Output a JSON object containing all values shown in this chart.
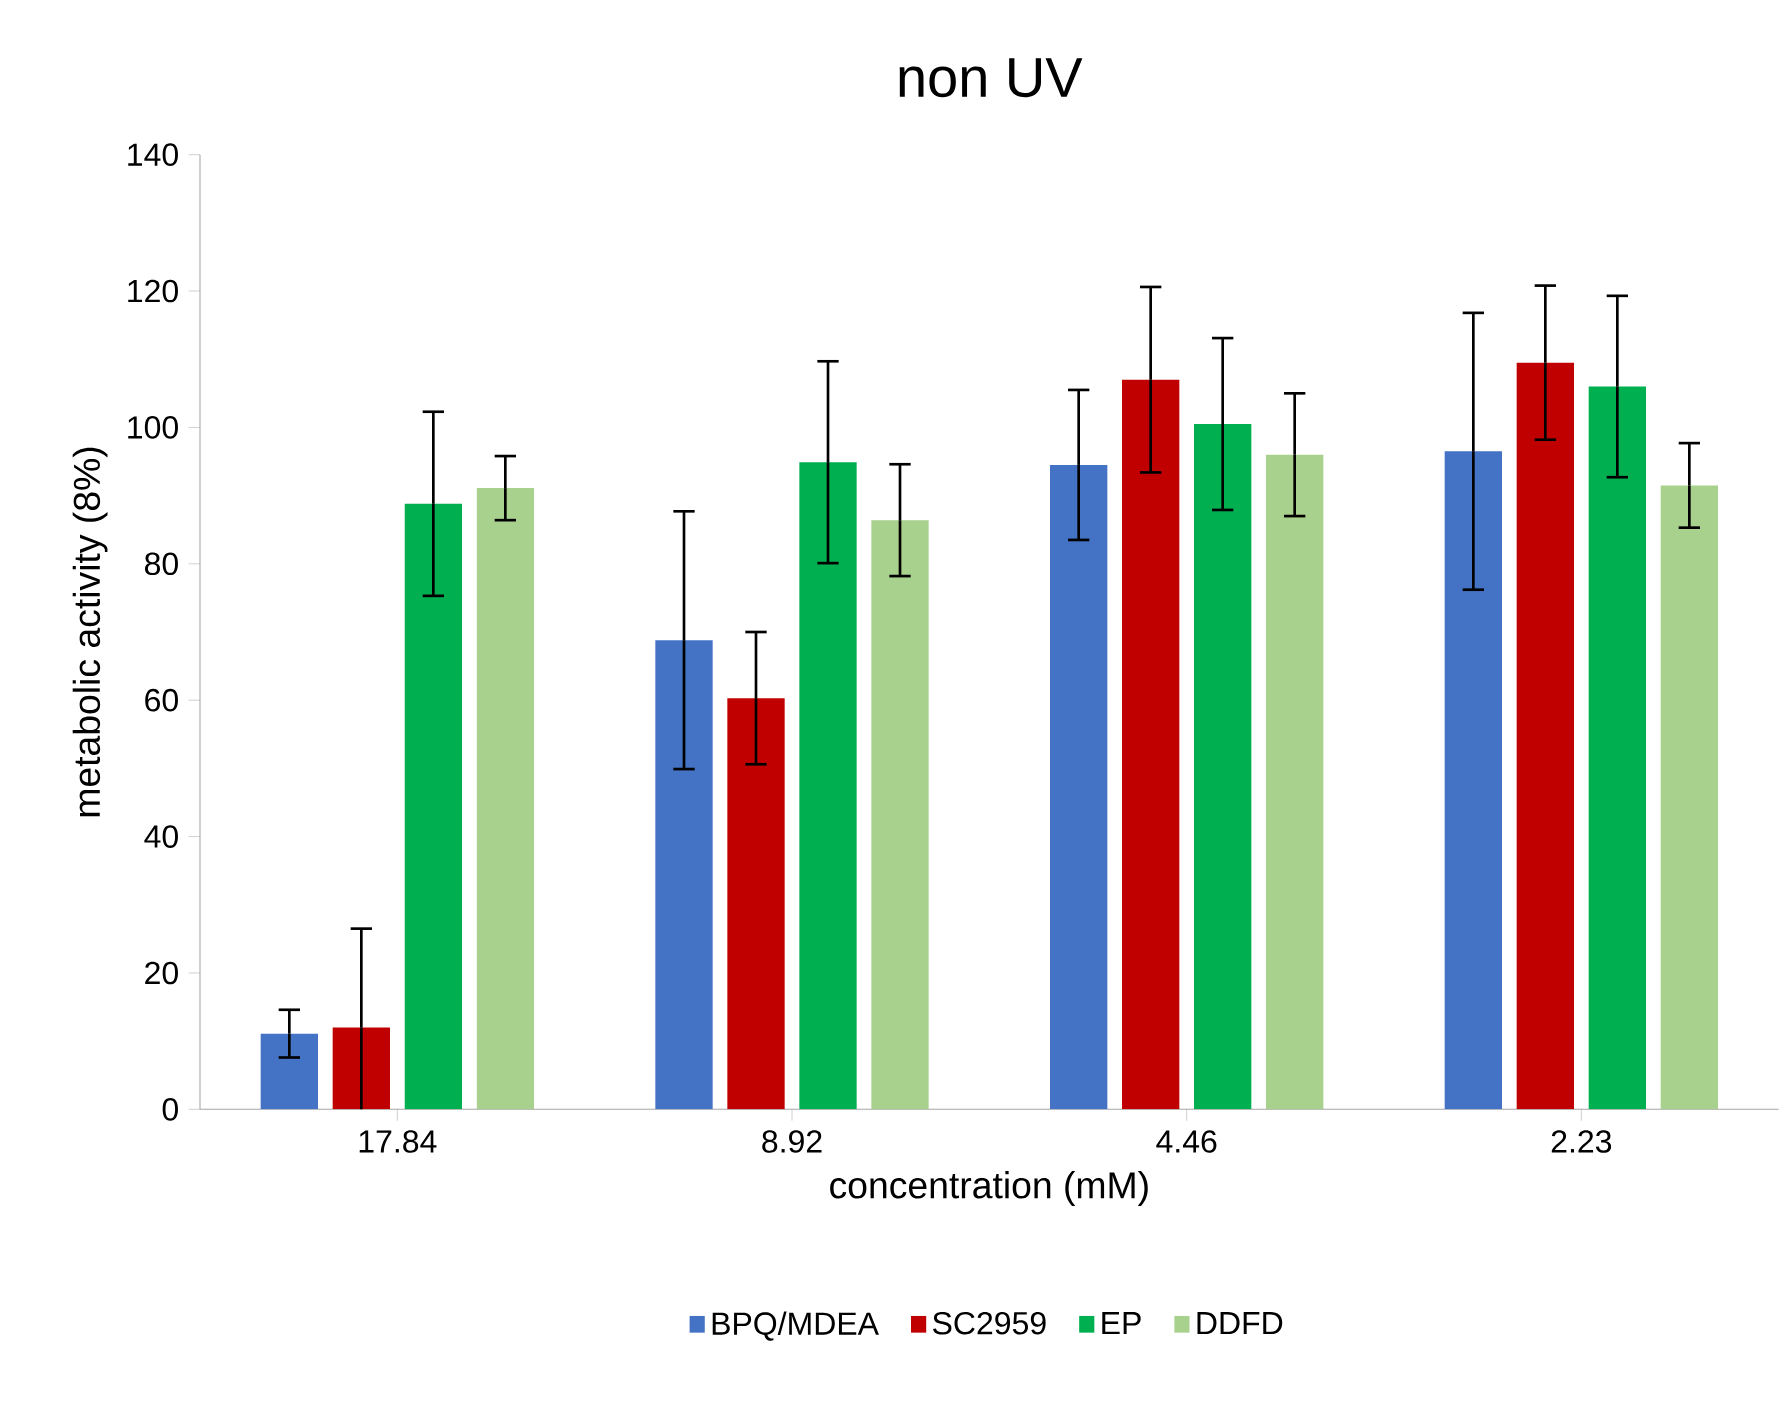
{
  "chart_data": {
    "type": "bar",
    "title": "non UV",
    "xlabel": "concentration (mM)",
    "ylabel": "metabolic activity (8%)",
    "categories": [
      "17.84",
      "8.92",
      "4.46",
      "2.23"
    ],
    "series": [
      {
        "name": "BPQ/MDEA",
        "color": "#4472c4",
        "values": [
          11.1,
          68.8,
          94.5,
          96.5
        ],
        "errors": [
          3.5,
          18.9,
          11,
          20.3
        ]
      },
      {
        "name": "SC2959",
        "color": "#c00000",
        "values": [
          12,
          60.3,
          107,
          109.5
        ],
        "errors": [
          14.5,
          9.7,
          13.6,
          11.3
        ]
      },
      {
        "name": "EP",
        "color": "#00b050",
        "values": [
          88.8,
          94.9,
          100.5,
          106
        ],
        "errors": [
          13.5,
          14.8,
          12.6,
          13.3
        ]
      },
      {
        "name": "DDFD",
        "color": "#a9d18e",
        "values": [
          91.1,
          86.4,
          96,
          91.5
        ],
        "errors": [
          4.7,
          8.2,
          9,
          6.2
        ]
      }
    ],
    "ylim": [
      0,
      140
    ],
    "yticks": [
      0,
      20,
      40,
      60,
      80,
      100,
      120,
      140
    ],
    "grid": false,
    "legend": "bottom"
  }
}
